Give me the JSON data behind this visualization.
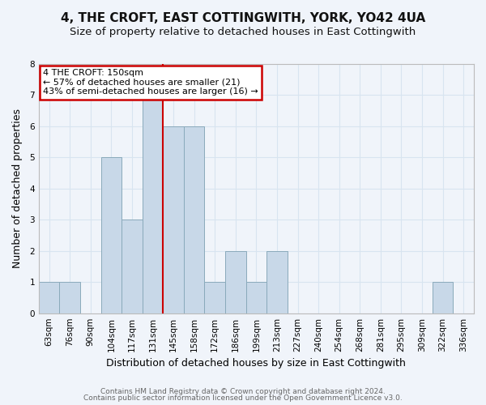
{
  "title": "4, THE CROFT, EAST COTTINGWITH, YORK, YO42 4UA",
  "subtitle": "Size of property relative to detached houses in East Cottingwith",
  "xlabel": "Distribution of detached houses by size in East Cottingwith",
  "ylabel": "Number of detached properties",
  "footnote1": "Contains HM Land Registry data © Crown copyright and database right 2024.",
  "footnote2": "Contains public sector information licensed under the Open Government Licence v3.0.",
  "bin_labels": [
    "63sqm",
    "76sqm",
    "90sqm",
    "104sqm",
    "117sqm",
    "131sqm",
    "145sqm",
    "158sqm",
    "172sqm",
    "186sqm",
    "199sqm",
    "213sqm",
    "227sqm",
    "240sqm",
    "254sqm",
    "268sqm",
    "281sqm",
    "295sqm",
    "309sqm",
    "322sqm",
    "336sqm"
  ],
  "bar_heights": [
    1,
    1,
    0,
    5,
    3,
    7,
    6,
    6,
    1,
    2,
    1,
    2,
    0,
    0,
    0,
    0,
    0,
    0,
    0,
    1,
    0
  ],
  "bar_color": "#c8d8e8",
  "bar_edge_color": "#8aaabb",
  "ylim": [
    0,
    8
  ],
  "yticks": [
    0,
    1,
    2,
    3,
    4,
    5,
    6,
    7,
    8
  ],
  "ref_line_index": 5,
  "annotation_title": "4 THE CROFT: 150sqm",
  "annotation_line1": "← 57% of detached houses are smaller (21)",
  "annotation_line2": "43% of semi-detached houses are larger (16) →",
  "annotation_box_color": "#ffffff",
  "annotation_border_color": "#cc0000",
  "ref_line_color": "#cc0000",
  "grid_color": "#d8e4f0",
  "bg_color": "#f0f4fa",
  "title_fontsize": 11,
  "subtitle_fontsize": 9.5,
  "xlabel_fontsize": 9,
  "ylabel_fontsize": 9,
  "tick_fontsize": 7.5,
  "footnote_fontsize": 6.5
}
